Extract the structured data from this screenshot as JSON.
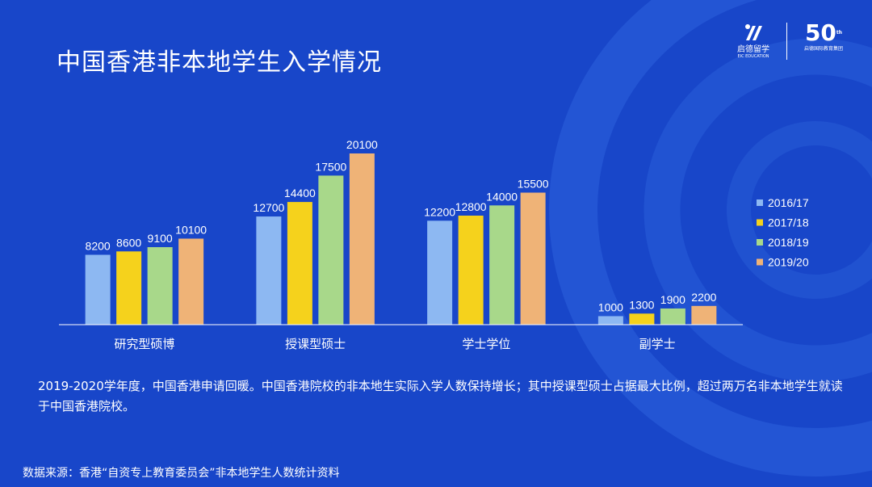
{
  "title": "中国香港非本地学生入学情况",
  "logo": {
    "brand_cn": "启德留学",
    "brand_en": "EIC EDUCATION",
    "anniv_num": "50",
    "anniv_suffix": "th",
    "anniv_cn": "启德国际教育集团"
  },
  "description": "2019-2020学年度，中国香港申请回暖。中国香港院校的非本地生实际入学人数保持增长；其中授课型硕士占据最大比例，超过两万名非本地学生就读于中国香港院校。",
  "source": "数据来源：香港“自资专上教育委员会”非本地学生人数统计资料",
  "colors": {
    "background": "#1846c9",
    "series": [
      "#8db8f2",
      "#f5d21c",
      "#a8d88a",
      "#efb377"
    ]
  },
  "chart_data": {
    "type": "bar",
    "title": "",
    "xlabel": "",
    "ylabel": "",
    "ylim": [
      0,
      21000
    ],
    "grid": false,
    "legend_position": "right",
    "categories": [
      "研究型硕博",
      "授课型硕士",
      "学士学位",
      "副学士"
    ],
    "series": [
      {
        "name": "2016/17",
        "values": [
          8200,
          12700,
          12200,
          1000
        ]
      },
      {
        "name": "2017/18",
        "values": [
          8600,
          14400,
          12800,
          1300
        ]
      },
      {
        "name": "2018/19",
        "values": [
          9100,
          17500,
          14000,
          1900
        ]
      },
      {
        "name": "2019/20",
        "values": [
          10100,
          20100,
          15500,
          2200
        ]
      }
    ]
  }
}
